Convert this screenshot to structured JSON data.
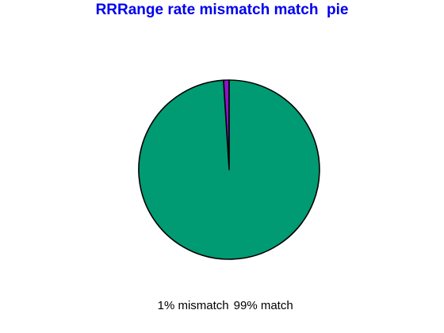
{
  "chart_data": {
    "type": "pie",
    "title": "RRRange rate mismatch match  pie",
    "categories": [
      "mismatch",
      "match"
    ],
    "values": [
      1,
      99
    ],
    "slice_labels": [
      "1% mismatch",
      "99% match"
    ],
    "colors": [
      "#8b14c8",
      "#009b72"
    ],
    "title_color": "#0000ee",
    "outline_color": "#000000",
    "legend_placement": "bottom"
  }
}
